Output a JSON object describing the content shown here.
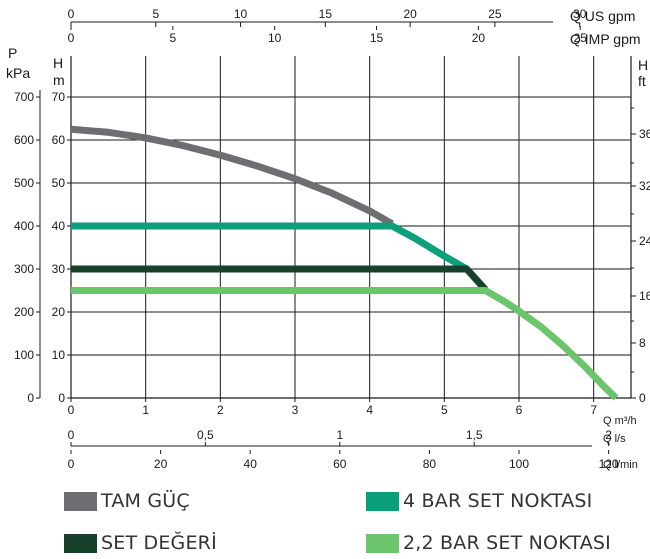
{
  "chart_data": {
    "type": "line",
    "title": "",
    "x_main": {
      "label": "Q m³/h",
      "range": [
        0,
        7.5
      ],
      "ticks": [
        "0",
        "1",
        "2",
        "3",
        "4",
        "5",
        "6",
        "7"
      ]
    },
    "x_ls": {
      "label": "Q l/s",
      "ticks": [
        {
          "v": 0,
          "t": "0"
        },
        {
          "v": 0.5,
          "t": "0,5"
        },
        {
          "v": 1,
          "t": "1"
        },
        {
          "v": 1.5,
          "t": "1,5"
        },
        {
          "v": 2,
          "t": "2"
        }
      ]
    },
    "x_lmin": {
      "label": "Q l/min",
      "ticks": [
        "0",
        "20",
        "40",
        "60",
        "80",
        "100",
        "120"
      ]
    },
    "x_us": {
      "label": "Q US gpm",
      "ticks": [
        "0",
        "5",
        "10",
        "15",
        "20",
        "25",
        "30"
      ]
    },
    "x_imp": {
      "label": "Q IMP gpm",
      "ticks": [
        "0",
        "5",
        "10",
        "15",
        "20",
        "25"
      ]
    },
    "y_kpa": {
      "label_top": "P",
      "label": "kPa",
      "ticks": [
        "0",
        "100",
        "200",
        "300",
        "400",
        "500",
        "600",
        "700"
      ]
    },
    "y_m": {
      "label": "H",
      "unit": "m",
      "range": [
        0,
        70
      ],
      "ticks": [
        "0",
        "10",
        "20",
        "30",
        "40",
        "50",
        "60",
        "70"
      ]
    },
    "y_ft": {
      "label": "H",
      "unit": "ft",
      "ticks": [
        "0",
        "8",
        "16",
        "24",
        "32",
        "36"
      ]
    },
    "grid": true,
    "series": [
      {
        "name": "TAM GÜÇ",
        "color": "#6e6e72",
        "points": [
          [
            0,
            62.5
          ],
          [
            0.5,
            61.8
          ],
          [
            1,
            60.5
          ],
          [
            1.5,
            58.7
          ],
          [
            2,
            56.5
          ],
          [
            2.5,
            53.9
          ],
          [
            3,
            51
          ],
          [
            3.5,
            47.6
          ],
          [
            4,
            43.5
          ],
          [
            4.3,
            40.5
          ]
        ]
      },
      {
        "name": "4 BAR SET NOKTASI",
        "color": "#0aa07c",
        "points": [
          [
            0,
            40
          ],
          [
            4.3,
            40
          ],
          [
            4.6,
            37.2
          ],
          [
            5,
            33
          ],
          [
            5.3,
            30
          ]
        ]
      },
      {
        "name": "SET DEĞERİ",
        "color": "#17412b",
        "points": [
          [
            0,
            30
          ],
          [
            5.3,
            30
          ],
          [
            5.55,
            25.2
          ]
        ]
      },
      {
        "name": "2,2 BAR SET NOKTASI",
        "color": "#6cc46c",
        "points": [
          [
            0,
            25
          ],
          [
            5.55,
            25
          ],
          [
            5.8,
            22.5
          ],
          [
            6,
            20.2
          ],
          [
            6.3,
            16.5
          ],
          [
            6.6,
            12
          ],
          [
            6.9,
            7
          ],
          [
            7.15,
            2.5
          ],
          [
            7.3,
            0
          ]
        ]
      }
    ],
    "legend_position": "bottom"
  }
}
